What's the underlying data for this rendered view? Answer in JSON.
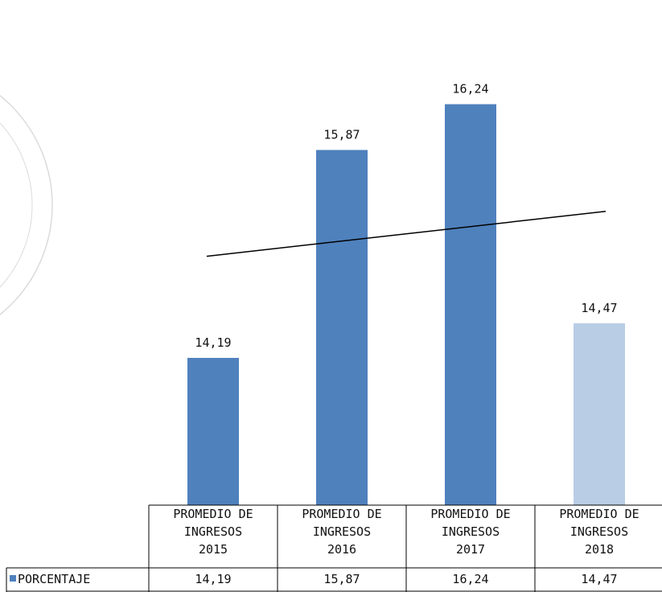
{
  "chart_data": {
    "type": "bar",
    "categories": [
      [
        "PROMEDIO DE",
        "INGRESOS",
        "2015"
      ],
      [
        "PROMEDIO DE",
        "INGRESOS",
        "2016"
      ],
      [
        "PROMEDIO DE",
        "INGRESOS",
        "2017"
      ],
      [
        "PROMEDIO DE",
        "INGRESOS",
        "2018"
      ]
    ],
    "series": [
      {
        "name": "PORCENTAJE",
        "values": [
          14.19,
          15.87,
          16.24,
          14.47
        ],
        "value_labels": [
          "14,19",
          "15,87",
          "16,24",
          "14,47"
        ]
      }
    ],
    "trendline": {
      "type": "linear",
      "color": "#000000"
    },
    "ylim": [
      13,
      16.9
    ],
    "grid": false,
    "legend": "data-table",
    "bar_colors": [
      "#4f81bd",
      "#4f81bd",
      "#4f81bd",
      "#b9cde5"
    ],
    "legend_key_color": "#4f81bd"
  }
}
